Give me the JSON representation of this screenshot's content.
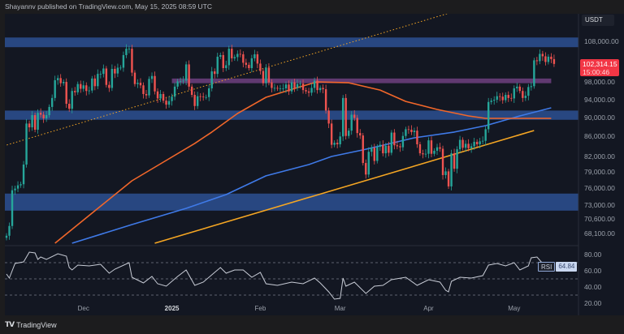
{
  "header": {
    "published": "Shayannv published on TradingView.com, May 15, 2025 08:59 UTC"
  },
  "footer": {
    "brand": "TradingView",
    "logo_mark": "TV"
  },
  "price_axis": {
    "currency": "USDT",
    "labels": [
      "108,000.00",
      "98,000.00",
      "94,000.00",
      "90,000.00",
      "86,000.00",
      "82,000.00",
      "79,000.00",
      "76,000.00",
      "73,000.00",
      "70,600.00",
      "68,100.00"
    ],
    "label_values": [
      108000,
      98000,
      94000,
      90000,
      86000,
      82000,
      79000,
      76000,
      73000,
      70600,
      68100
    ],
    "last_price": "102,314.15",
    "countdown": "15:00:46",
    "last_price_color": "#f23645"
  },
  "time_axis": {
    "labels": [
      "Dec",
      "2025",
      "Feb",
      "Mar",
      "Apr",
      "May"
    ],
    "label_dates": [
      "2024-12-01",
      "2025-01-01",
      "2025-02-01",
      "2025-03-01",
      "2025-04-01",
      "2025-05-01"
    ]
  },
  "rsi": {
    "name": "RSI",
    "value": "64.84",
    "axis_labels": [
      "80.00",
      "60.00",
      "40.00",
      "20.00"
    ],
    "axis_values": [
      80,
      60,
      40,
      20
    ],
    "levels": [
      70,
      50,
      30
    ]
  },
  "colors": {
    "background": "#131722",
    "up": "#26a69a",
    "down": "#ef5350",
    "zone": "#2b4c8c",
    "purple_zone": "#6e3f7f",
    "ma_orange": "#f2672a",
    "ma_blue": "#3f7ae8",
    "trendline": "#f5a623",
    "rsi_line": "#c8ccd6"
  },
  "chart_data": {
    "type": "candlestick",
    "scale": "log",
    "start_date": "2024-11-04",
    "interval": "1D",
    "closes": [
      67800,
      69400,
      75600,
      75900,
      76500,
      76700,
      80400,
      88700,
      87900,
      90500,
      87400,
      91000,
      90600,
      89800,
      90500,
      92300,
      94300,
      98400,
      98900,
      97700,
      98000,
      93000,
      91900,
      95900,
      95600,
      97500,
      96400,
      97200,
      95900,
      96000,
      98800,
      97000,
      99900,
      99900,
      101200,
      97300,
      96600,
      101100,
      100000,
      101400,
      101400,
      104500,
      106100,
      106100,
      100200,
      97500,
      97800,
      97200,
      95200,
      94900,
      98700,
      99400,
      95800,
      94200,
      95200,
      93700,
      92800,
      93600,
      94600,
      96900,
      98100,
      98200,
      98300,
      102200,
      96900,
      95000,
      92500,
      94700,
      94600,
      94500,
      94500,
      96500,
      100500,
      99900,
      104100,
      104500,
      101300,
      102000,
      106100,
      103700,
      104000,
      104800,
      104700,
      102600,
      102100,
      101300,
      103700,
      104700,
      102400,
      100600,
      97700,
      101400,
      97900,
      96600,
      96600,
      96500,
      96500,
      96500,
      97400,
      95800,
      97900,
      96600,
      97500,
      97600,
      96100,
      95800,
      95500,
      96600,
      98300,
      96100,
      96600,
      96300,
      91500,
      88700,
      84300,
      84700,
      84400,
      86000,
      94300,
      86100,
      87200,
      90600,
      89900,
      86700,
      86200,
      80700,
      78500,
      82900,
      83700,
      81100,
      83900,
      84300,
      82600,
      84100,
      82700,
      86800,
      84200,
      84000,
      83800,
      86100,
      87500,
      87400,
      86900,
      87200,
      84400,
      82600,
      82400,
      82500,
      85200,
      82500,
      83100,
      83800,
      83500,
      78400,
      79100,
      76300,
      82600,
      79600,
      83400,
      85300,
      83700,
      84500,
      83600,
      84000,
      84900,
      84400,
      85000,
      85100,
      87500,
      93400,
      93700,
      93900,
      94700,
      94600,
      93800,
      95000,
      94300,
      94200,
      96500,
      96900,
      95900,
      94300,
      94800,
      96800,
      97000,
      103200,
      103000,
      104800,
      104200,
      102800,
      104100,
      103500,
      102314.15
    ],
    "zones": [
      {
        "low": 106500,
        "high": 109000,
        "color": "#2b4c8c"
      },
      {
        "low": 89500,
        "high": 91500,
        "color": "#2b4c8c"
      },
      {
        "low": 72000,
        "high": 75000,
        "color": "#2b4c8c"
      },
      {
        "low": 97700,
        "high": 98800,
        "color": "#6e3f7f",
        "from": "2025-01-01",
        "to": "2025-05-14"
      }
    ],
    "ma_orange": [
      [
        "2024-11-21",
        66600
      ],
      [
        "2024-12-05",
        71970
      ],
      [
        "2024-12-18",
        77340
      ],
      [
        "2024-12-29",
        80870
      ],
      [
        "2025-01-09",
        84570
      ],
      [
        "2025-01-15",
        86900
      ],
      [
        "2025-01-24",
        90860
      ],
      [
        "2025-02-03",
        94450
      ],
      [
        "2025-02-15",
        96880
      ],
      [
        "2025-02-21",
        98010
      ],
      [
        "2025-03-04",
        97800
      ],
      [
        "2025-03-15",
        96100
      ],
      [
        "2025-03-24",
        93530
      ],
      [
        "2025-04-04",
        91740
      ],
      [
        "2025-04-15",
        90330
      ],
      [
        "2025-04-21",
        89800
      ],
      [
        "2025-05-14",
        89800
      ]
    ],
    "ma_blue": [
      [
        "2024-11-27",
        66600
      ],
      [
        "2024-12-18",
        69640
      ],
      [
        "2025-01-06",
        72390
      ],
      [
        "2025-01-20",
        74820
      ],
      [
        "2025-02-03",
        78250
      ],
      [
        "2025-02-18",
        80400
      ],
      [
        "2025-02-26",
        81970
      ],
      [
        "2025-03-09",
        83270
      ],
      [
        "2025-03-15",
        84070
      ],
      [
        "2025-03-27",
        85720
      ],
      [
        "2025-04-10",
        86900
      ],
      [
        "2025-04-21",
        88250
      ],
      [
        "2025-05-03",
        90330
      ],
      [
        "2025-05-14",
        92100
      ]
    ],
    "trendline_solid": [
      [
        "2024-12-26",
        66600
      ],
      [
        "2025-05-08",
        87230
      ]
    ],
    "trendline_dotted": [
      [
        "2024-11-03",
        84070
      ],
      [
        "2025-03-26",
        112490
      ]
    ],
    "rsi_series": [
      [
        "2024-11-04",
        56
      ],
      [
        "2024-11-05",
        51
      ],
      [
        "2024-11-07",
        69
      ],
      [
        "2024-11-10",
        71
      ],
      [
        "2024-11-12",
        83
      ],
      [
        "2024-11-14",
        82
      ],
      [
        "2024-11-15",
        74
      ],
      [
        "2024-11-16",
        77
      ],
      [
        "2024-11-18",
        74
      ],
      [
        "2024-11-22",
        81
      ],
      [
        "2024-11-25",
        78
      ],
      [
        "2024-11-26",
        64
      ],
      [
        "2024-11-27",
        61
      ],
      [
        "2024-11-29",
        67
      ],
      [
        "2024-12-03",
        66
      ],
      [
        "2024-12-07",
        68
      ],
      [
        "2024-12-10",
        57
      ],
      [
        "2024-12-12",
        62
      ],
      [
        "2024-12-17",
        70
      ],
      [
        "2024-12-18",
        52
      ],
      [
        "2024-12-22",
        45
      ],
      [
        "2024-12-25",
        53
      ],
      [
        "2024-12-27",
        44
      ],
      [
        "2024-12-30",
        41
      ],
      [
        "2025-01-03",
        53
      ],
      [
        "2025-01-06",
        61
      ],
      [
        "2025-01-09",
        42
      ],
      [
        "2025-01-12",
        46
      ],
      [
        "2025-01-16",
        58
      ],
      [
        "2025-01-18",
        64
      ],
      [
        "2025-01-20",
        57
      ],
      [
        "2025-01-23",
        61
      ],
      [
        "2025-01-26",
        61
      ],
      [
        "2025-01-29",
        52
      ],
      [
        "2025-02-01",
        58
      ],
      [
        "2025-02-03",
        44
      ],
      [
        "2025-02-07",
        42
      ],
      [
        "2025-02-12",
        46
      ],
      [
        "2025-02-16",
        44
      ],
      [
        "2025-02-20",
        51
      ],
      [
        "2025-02-22",
        45
      ],
      [
        "2025-02-25",
        34
      ],
      [
        "2025-02-27",
        25
      ],
      [
        "2025-03-01",
        26
      ],
      [
        "2025-03-02",
        51
      ],
      [
        "2025-03-03",
        41
      ],
      [
        "2025-03-06",
        46
      ],
      [
        "2025-03-10",
        32
      ],
      [
        "2025-03-13",
        41
      ],
      [
        "2025-03-16",
        42
      ],
      [
        "2025-03-19",
        49
      ],
      [
        "2025-03-24",
        52
      ],
      [
        "2025-03-28",
        42
      ],
      [
        "2025-04-01",
        49
      ],
      [
        "2025-04-05",
        46
      ],
      [
        "2025-04-07",
        36
      ],
      [
        "2025-04-08",
        34
      ],
      [
        "2025-04-09",
        47
      ],
      [
        "2025-04-12",
        52
      ],
      [
        "2025-04-16",
        51
      ],
      [
        "2025-04-20",
        54
      ],
      [
        "2025-04-22",
        67
      ],
      [
        "2025-04-25",
        69
      ],
      [
        "2025-04-28",
        66
      ],
      [
        "2025-05-01",
        70
      ],
      [
        "2025-05-03",
        61
      ],
      [
        "2025-05-06",
        66
      ],
      [
        "2025-05-07",
        76
      ],
      [
        "2025-05-09",
        77
      ],
      [
        "2025-05-11",
        69
      ],
      [
        "2025-05-12",
        70
      ],
      [
        "2025-05-14",
        64.84
      ]
    ]
  }
}
